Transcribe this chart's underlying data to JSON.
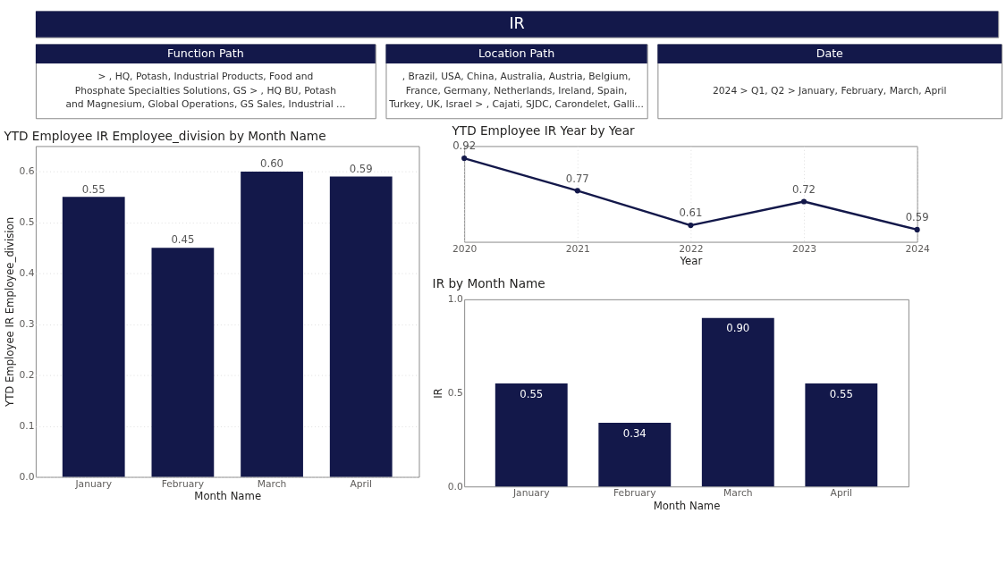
{
  "chart_data": [
    {
      "type": "other",
      "title": "IR"
    },
    {
      "type": "other",
      "title": "Function Path",
      "annotations": [
        "> , HQ, Potash, Industrial Products, Food and",
        "Phosphate Specialties Solutions, GS > , HQ BU, Potash",
        "and Magnesium, Global Operations, GS Sales, Industrial ..."
      ]
    },
    {
      "type": "other",
      "title": "Location Path",
      "annotations": [
        ", Brazil, USA, China, Australia, Austria, Belgium,",
        "France, Germany, Netherlands, Ireland, Spain,",
        "Turkey, UK, Israel > , Cajati, SJDC, Carondelet, Galli..."
      ]
    },
    {
      "type": "other",
      "title": "Date",
      "annotations": [
        "2024 > Q1, Q2 > January, February, March, April"
      ]
    },
    {
      "type": "bar",
      "title": "YTD Employee IR Employee_division by Month Name",
      "xlabel": "Month Name",
      "ylabel": "YTD Employee IR Employee_division",
      "categories": [
        "January",
        "February",
        "March",
        "April"
      ],
      "values": [
        0.55,
        0.45,
        0.6,
        0.59
      ],
      "color": "#13184a",
      "value_labels": [
        "0.55",
        "0.45",
        "0.60",
        "0.59"
      ],
      "ylim": [
        0,
        0.65
      ],
      "yticks": [
        {
          "value": 0,
          "label": "0.0"
        },
        0.1,
        0.2,
        0.3,
        0.4,
        0.5,
        0.6
      ],
      "grid": "y"
    },
    {
      "type": "line",
      "title": "YTD Employee IR Year by Year",
      "xlabel": "Year",
      "categories": [
        "2020",
        "2021",
        "2022",
        "2023",
        "2024"
      ],
      "values": [
        0.92,
        0.77,
        0.61,
        0.72,
        0.59
      ],
      "color": "#13184a",
      "data_labels": true,
      "marker": "circle",
      "grid": "x",
      "tick_labels": "x"
    },
    {
      "type": "bar",
      "title": "IR by Month Name",
      "xlabel": "Month Name",
      "ylabel": "IR",
      "categories": [
        "January",
        "February",
        "March",
        "April"
      ],
      "values": [
        0.55,
        0.34,
        0.9,
        0.55
      ],
      "color": "#13184a",
      "value_labels": [
        "0.55",
        "0.34",
        "0.90",
        "0.55"
      ],
      "ylim": [
        0,
        1.0
      ],
      "yticks": [
        {
          "value": 0,
          "label": "0.0"
        },
        {
          "value": 0.5,
          "label": "0.5"
        },
        {
          "value": 1.0,
          "label": "1.0"
        }
      ],
      "grid": false
    }
  ]
}
